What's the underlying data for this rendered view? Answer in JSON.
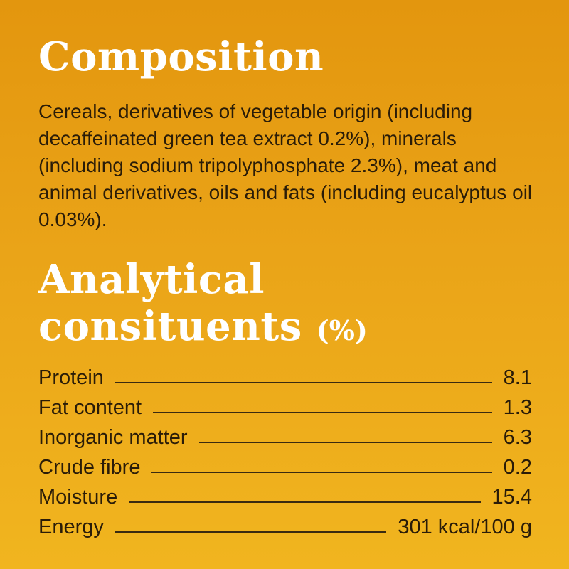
{
  "composition": {
    "heading": "Composition",
    "text": "Cereals, derivatives of vegetable origin (including decaffeinated green tea extract 0.2%), minerals (including sodium tripolyphosphate 2.3%), meat and animal derivatives, oils and fats (including eucalyptus oil 0.03%)."
  },
  "analytical": {
    "heading_line1": "Analytical",
    "heading_line2": "consituents",
    "unit": "(%)",
    "rows": [
      {
        "label": "Protein",
        "value": "8.1"
      },
      {
        "label": "Fat content",
        "value": "1.3"
      },
      {
        "label": "Inorganic matter",
        "value": "6.3"
      },
      {
        "label": "Crude fibre",
        "value": "0.2"
      },
      {
        "label": "Moisture",
        "value": "15.4"
      },
      {
        "label": "Energy",
        "value": "301 kcal/100 g"
      }
    ]
  },
  "colors": {
    "background_top": "#E3960E",
    "background_bottom": "#F1B51F",
    "heading": "#FFFFFF",
    "body_text": "#2A1C08"
  }
}
